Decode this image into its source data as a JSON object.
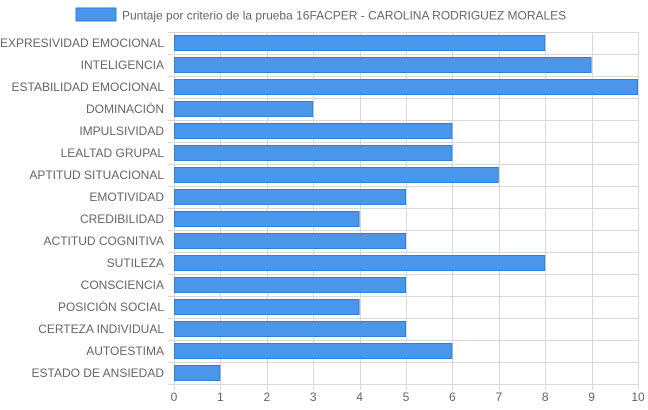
{
  "chart_data": {
    "type": "bar",
    "orientation": "horizontal",
    "legend": {
      "label": "Puntaje por criterio de la prueba 16FACPER - CAROLINA RODRIGUEZ MORALES",
      "position": "top"
    },
    "categories": [
      "EXPRESIVIDAD EMOCIONAL",
      "INTELIGENCIA",
      "ESTABILIDAD EMOCIONAL",
      "DOMINACIÓN",
      "IMPULSIVIDAD",
      "LEALTAD GRUPAL",
      "APTITUD SITUACIONAL",
      "EMOTIVIDAD",
      "CREDIBILIDAD",
      "ACTITUD COGNITIVA",
      "SUTILEZA",
      "CONSCIENCIA",
      "POSICIÓN SOCIAL",
      "CERTEZA INDIVIDUAL",
      "AUTOESTIMA",
      "ESTADO DE ANSIEDAD"
    ],
    "series": [
      {
        "name": "Puntaje por criterio de la prueba 16FACPER - CAROLINA RODRIGUEZ MORALES",
        "values": [
          8,
          9,
          10,
          3,
          6,
          6,
          7,
          5,
          4,
          5,
          8,
          5,
          4,
          5,
          6,
          1
        ]
      }
    ],
    "x_ticks": [
      "0",
      "1",
      "2",
      "3",
      "4",
      "5",
      "6",
      "7",
      "8",
      "9",
      "10"
    ],
    "xlim": [
      0,
      10
    ],
    "grid": true,
    "colors": {
      "bar_fill": "#4a96ea",
      "bar_stroke": "#2f80dd",
      "grid": "#d9d9d9",
      "text": "#666666"
    }
  }
}
